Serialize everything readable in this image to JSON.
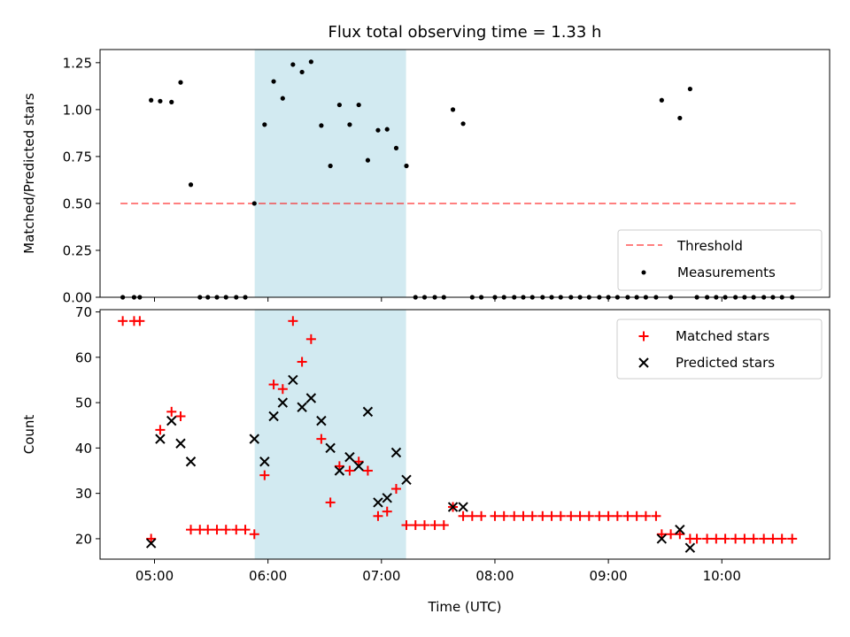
{
  "chart_data": [
    {
      "type": "scatter",
      "title": "Flux total observing time = 1.33 h",
      "xlabel": "",
      "ylabel": "Matched/Predicted stars",
      "ylim": [
        0,
        1.32
      ],
      "xlim": [
        4.52,
        10.95
      ],
      "yticks": [
        "0.00",
        "0.25",
        "0.50",
        "0.75",
        "1.00",
        "1.25"
      ],
      "ytick_values": [
        0,
        0.25,
        0.5,
        0.75,
        1.0,
        1.25
      ],
      "grid": false,
      "legend": "lower-right",
      "highlight_span": [
        5.883,
        7.217
      ],
      "highlight_color": "#add8e6",
      "threshold": {
        "name": "Threshold",
        "value": 0.5,
        "x_range": [
          4.7,
          10.65
        ],
        "color": "#ff0000"
      },
      "series": [
        {
          "name": "Measurements",
          "color": "#000000",
          "points": [
            [
              4.72,
              0
            ],
            [
              4.82,
              0
            ],
            [
              4.87,
              0
            ],
            [
              4.97,
              1.05
            ],
            [
              5.05,
              1.045
            ],
            [
              5.15,
              1.04
            ],
            [
              5.23,
              1.145
            ],
            [
              5.32,
              0.6
            ],
            [
              5.4,
              0
            ],
            [
              5.47,
              0
            ],
            [
              5.55,
              0
            ],
            [
              5.63,
              0
            ],
            [
              5.72,
              0
            ],
            [
              5.8,
              0
            ],
            [
              5.88,
              0.5
            ],
            [
              5.97,
              0.92
            ],
            [
              6.05,
              1.15
            ],
            [
              6.13,
              1.06
            ],
            [
              6.22,
              1.24
            ],
            [
              6.3,
              1.2
            ],
            [
              6.38,
              1.255
            ],
            [
              6.47,
              0.915
            ],
            [
              6.55,
              0.7
            ],
            [
              6.63,
              1.025
            ],
            [
              6.72,
              0.92
            ],
            [
              6.8,
              1.025
            ],
            [
              6.88,
              0.73
            ],
            [
              6.97,
              0.89
            ],
            [
              7.05,
              0.895
            ],
            [
              7.13,
              0.795
            ],
            [
              7.22,
              0.7
            ],
            [
              7.3,
              0
            ],
            [
              7.38,
              0
            ],
            [
              7.47,
              0
            ],
            [
              7.55,
              0
            ],
            [
              7.63,
              1.0
            ],
            [
              7.72,
              0.925
            ],
            [
              7.8,
              0
            ],
            [
              7.88,
              0
            ],
            [
              8.0,
              0
            ],
            [
              8.08,
              0
            ],
            [
              8.17,
              0
            ],
            [
              8.25,
              0
            ],
            [
              8.33,
              0
            ],
            [
              8.42,
              0
            ],
            [
              8.5,
              0
            ],
            [
              8.58,
              0
            ],
            [
              8.67,
              0
            ],
            [
              8.75,
              0
            ],
            [
              8.83,
              0
            ],
            [
              8.92,
              0
            ],
            [
              9.0,
              0
            ],
            [
              9.08,
              0
            ],
            [
              9.17,
              0
            ],
            [
              9.25,
              0
            ],
            [
              9.33,
              0
            ],
            [
              9.42,
              0
            ],
            [
              9.47,
              1.05
            ],
            [
              9.55,
              0
            ],
            [
              9.63,
              0.955
            ],
            [
              9.72,
              1.11
            ],
            [
              9.78,
              0
            ],
            [
              9.87,
              0
            ],
            [
              9.95,
              0
            ],
            [
              10.03,
              0
            ],
            [
              10.12,
              0
            ],
            [
              10.2,
              0
            ],
            [
              10.28,
              0
            ],
            [
              10.37,
              0
            ],
            [
              10.45,
              0
            ],
            [
              10.53,
              0
            ],
            [
              10.62,
              0
            ]
          ]
        }
      ]
    },
    {
      "type": "scatter",
      "title": "",
      "xlabel": "Time (UTC)",
      "ylabel": "Count",
      "ylim": [
        15.5,
        70.5
      ],
      "xlim": [
        4.52,
        10.95
      ],
      "yticks": [
        "20",
        "30",
        "40",
        "50",
        "60",
        "70"
      ],
      "ytick_values": [
        20,
        30,
        40,
        50,
        60,
        70
      ],
      "xticks": [
        "05:00",
        "06:00",
        "07:00",
        "08:00",
        "09:00",
        "10:00"
      ],
      "xtick_values": [
        5,
        6,
        7,
        8,
        9,
        10
      ],
      "grid": false,
      "legend": "top-right",
      "highlight_span": [
        5.883,
        7.217
      ],
      "highlight_color": "#add8e6",
      "series": [
        {
          "name": "Matched stars",
          "marker": "plus",
          "color": "#ff0000",
          "points": [
            [
              4.72,
              68
            ],
            [
              4.82,
              68
            ],
            [
              4.87,
              68
            ],
            [
              4.97,
              20
            ],
            [
              5.05,
              44
            ],
            [
              5.15,
              48
            ],
            [
              5.23,
              47
            ],
            [
              5.32,
              22
            ],
            [
              5.4,
              22
            ],
            [
              5.47,
              22
            ],
            [
              5.55,
              22
            ],
            [
              5.63,
              22
            ],
            [
              5.72,
              22
            ],
            [
              5.8,
              22
            ],
            [
              5.88,
              21
            ],
            [
              5.97,
              34
            ],
            [
              6.05,
              54
            ],
            [
              6.13,
              53
            ],
            [
              6.22,
              68
            ],
            [
              6.3,
              59
            ],
            [
              6.38,
              64
            ],
            [
              6.47,
              42
            ],
            [
              6.55,
              28
            ],
            [
              6.63,
              36
            ],
            [
              6.72,
              35
            ],
            [
              6.8,
              37
            ],
            [
              6.88,
              35
            ],
            [
              6.97,
              25
            ],
            [
              7.05,
              26
            ],
            [
              7.13,
              31
            ],
            [
              7.22,
              23
            ],
            [
              7.3,
              23
            ],
            [
              7.38,
              23
            ],
            [
              7.47,
              23
            ],
            [
              7.55,
              23
            ],
            [
              7.63,
              27
            ],
            [
              7.72,
              25
            ],
            [
              7.8,
              25
            ],
            [
              7.88,
              25
            ],
            [
              8.0,
              25
            ],
            [
              8.08,
              25
            ],
            [
              8.17,
              25
            ],
            [
              8.25,
              25
            ],
            [
              8.33,
              25
            ],
            [
              8.42,
              25
            ],
            [
              8.5,
              25
            ],
            [
              8.58,
              25
            ],
            [
              8.67,
              25
            ],
            [
              8.75,
              25
            ],
            [
              8.83,
              25
            ],
            [
              8.92,
              25
            ],
            [
              9.0,
              25
            ],
            [
              9.08,
              25
            ],
            [
              9.17,
              25
            ],
            [
              9.25,
              25
            ],
            [
              9.33,
              25
            ],
            [
              9.42,
              25
            ],
            [
              9.47,
              21
            ],
            [
              9.55,
              21
            ],
            [
              9.63,
              21
            ],
            [
              9.72,
              20
            ],
            [
              9.78,
              20
            ],
            [
              9.87,
              20
            ],
            [
              9.95,
              20
            ],
            [
              10.03,
              20
            ],
            [
              10.12,
              20
            ],
            [
              10.2,
              20
            ],
            [
              10.28,
              20
            ],
            [
              10.37,
              20
            ],
            [
              10.45,
              20
            ],
            [
              10.53,
              20
            ],
            [
              10.62,
              20
            ]
          ]
        },
        {
          "name": "Predicted stars",
          "marker": "x",
          "color": "#000000",
          "points": [
            [
              4.97,
              19
            ],
            [
              5.05,
              42
            ],
            [
              5.15,
              46
            ],
            [
              5.23,
              41
            ],
            [
              5.32,
              37
            ],
            [
              5.88,
              42
            ],
            [
              5.97,
              37
            ],
            [
              6.05,
              47
            ],
            [
              6.13,
              50
            ],
            [
              6.22,
              55
            ],
            [
              6.3,
              49
            ],
            [
              6.38,
              51
            ],
            [
              6.47,
              46
            ],
            [
              6.55,
              40
            ],
            [
              6.63,
              35
            ],
            [
              6.72,
              38
            ],
            [
              6.8,
              36
            ],
            [
              6.88,
              48
            ],
            [
              6.97,
              28
            ],
            [
              7.05,
              29
            ],
            [
              7.13,
              39
            ],
            [
              7.22,
              33
            ],
            [
              7.63,
              27
            ],
            [
              7.72,
              27
            ],
            [
              9.47,
              20
            ],
            [
              9.63,
              22
            ],
            [
              9.72,
              18
            ]
          ]
        }
      ]
    }
  ]
}
